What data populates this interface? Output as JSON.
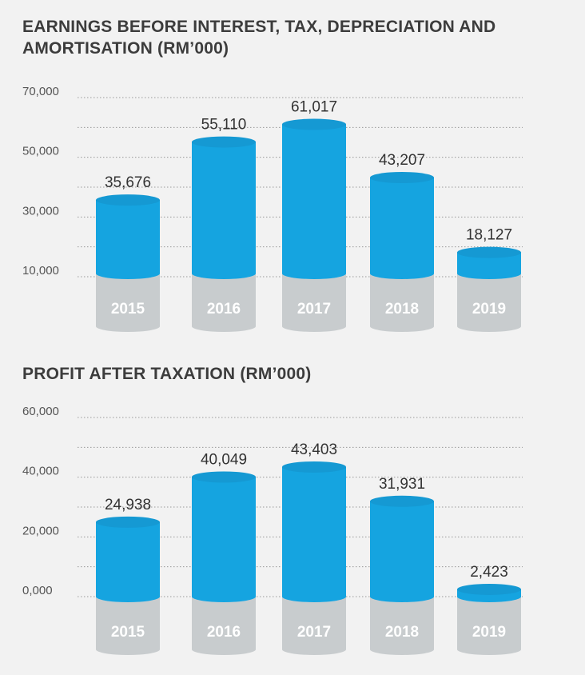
{
  "colors": {
    "bar": "#15a4e0",
    "bar_top": "#1599d3",
    "base": "#c8ccce",
    "base_top": "#e1e3e4",
    "grid": "#999999"
  },
  "chart_data": [
    {
      "type": "bar",
      "title": "EARNINGS BEFORE INTEREST, TAX, DEPRECIATION AND AMORTISATION (RM’000)",
      "categories": [
        "2015",
        "2016",
        "2017",
        "2018",
        "2019"
      ],
      "values": [
        35676,
        55110,
        61017,
        43207,
        18127
      ],
      "value_labels": [
        "35,676",
        "55,110",
        "61,017",
        "43,207",
        "18,127"
      ],
      "yticks": [
        10000,
        30000,
        50000,
        70000
      ],
      "ytick_labels": [
        "10,000",
        "30,000",
        "50,000",
        "70,000"
      ],
      "ylim": [
        10000,
        70000
      ],
      "grid": true
    },
    {
      "type": "bar",
      "title": "PROFIT AFTER TAXATION (RM’000)",
      "categories": [
        "2015",
        "2016",
        "2017",
        "2018",
        "2019"
      ],
      "values": [
        24938,
        40049,
        43403,
        31931,
        2423
      ],
      "value_labels": [
        "24,938",
        "40,049",
        "43,403",
        "31,931",
        "2,423"
      ],
      "yticks": [
        0,
        20000,
        40000,
        60000
      ],
      "ytick_labels": [
        "0,000",
        "20,000",
        "40,000",
        "60,000"
      ],
      "ylim": [
        0,
        60000
      ],
      "grid": true
    }
  ]
}
